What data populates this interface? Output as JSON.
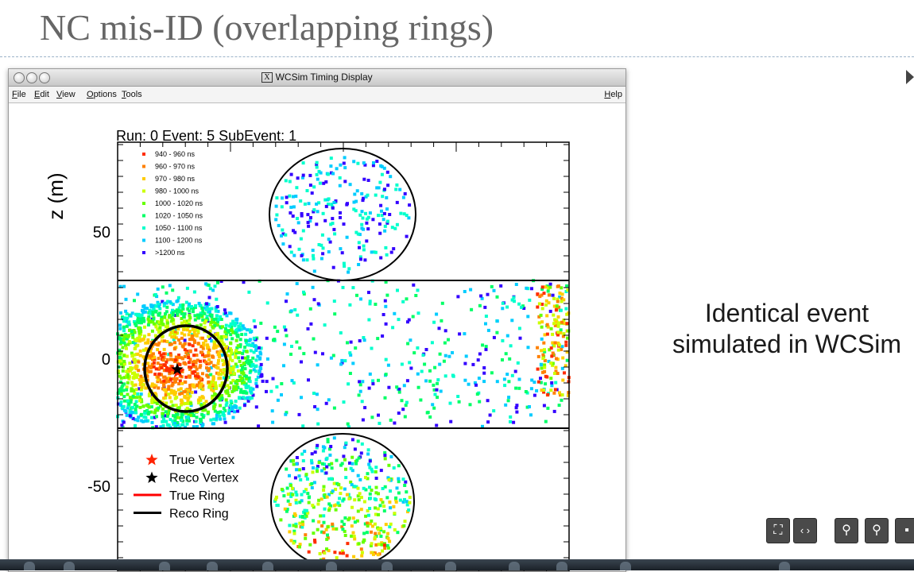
{
  "slide": {
    "title": "NC mis-ID (overlapping rings)",
    "caption": "Identical event simulated in WCSim"
  },
  "window": {
    "app_label": "X",
    "title": "WCSim Timing Display",
    "menu": [
      "File",
      "Edit",
      "View",
      "Options",
      "Tools"
    ],
    "help": "Help"
  },
  "plot": {
    "title": "Run: 0  Event: 5  SubEvent: 1",
    "ylabel": "z (m)",
    "yticks": [
      "50",
      "0",
      "-50"
    ],
    "timing_legend": [
      {
        "label": "940 - 960 ns",
        "color": "#ff2d00"
      },
      {
        "label": "960 - 970 ns",
        "color": "#ff8000"
      },
      {
        "label": "970 - 980 ns",
        "color": "#ffcc00"
      },
      {
        "label": "980 - 1000 ns",
        "color": "#ccff00"
      },
      {
        "label": "1000 - 1020 ns",
        "color": "#66ff00"
      },
      {
        "label": "1020 - 1050 ns",
        "color": "#00ff66"
      },
      {
        "label": "1050 - 1100 ns",
        "color": "#00ffcc"
      },
      {
        "label": "1100 - 1200 ns",
        "color": "#00ccff"
      },
      {
        "label": ">1200 ns",
        "color": "#3300ff"
      }
    ],
    "marker_legend": [
      {
        "label": "True Vertex",
        "color": "#ff2200",
        "kind": "star"
      },
      {
        "label": "Reco Vertex",
        "color": "#000000",
        "kind": "star"
      },
      {
        "label": "True Ring",
        "color": "#ff0000",
        "kind": "line"
      },
      {
        "label": "Reco Ring",
        "color": "#000000",
        "kind": "line"
      }
    ]
  },
  "toolbar": {
    "icons": [
      "fit-screen-icon",
      "fit-width-icon",
      "zoom-out-icon",
      "zoom-in-icon"
    ]
  }
}
